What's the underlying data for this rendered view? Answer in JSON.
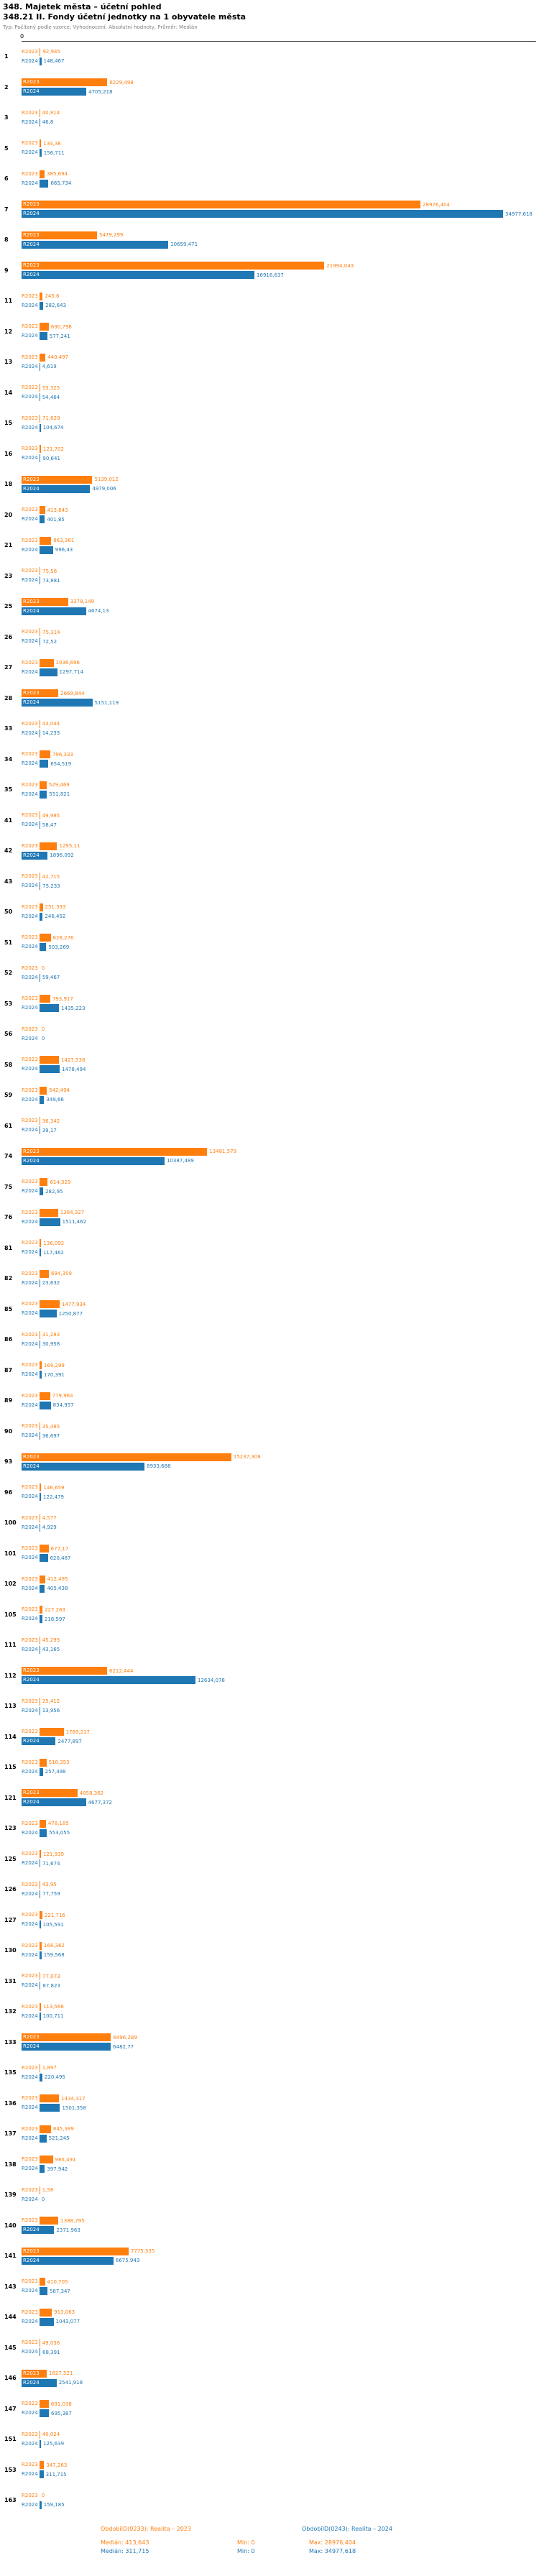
{
  "chart_data": {
    "type": "bar",
    "orientation": "horizontal",
    "title": "348. Majetek města – účetní pohled",
    "subtitle": "348.21 II. Fondy účetní jednotky na 1 obyvatele města",
    "note": "Typ: Počítaný podle vzorce; Vyhodnocení: Absolutní hodnoty, Průměr: Medián",
    "x_axis": {
      "origin_label": "0",
      "max": 34977.618
    },
    "series": [
      {
        "name": "R2023",
        "color": "#ff7f0e"
      },
      {
        "name": "R2024",
        "color": "#1f77b4"
      }
    ],
    "rows": [
      {
        "id": "1",
        "v2023": "92,945",
        "v2024": "148,467"
      },
      {
        "id": "2",
        "v2023": "6229,498",
        "v2024": "4705,218"
      },
      {
        "id": "3",
        "v2023": "40,814",
        "v2024": "46,8"
      },
      {
        "id": "5",
        "v2023": "134,38",
        "v2024": "156,711"
      },
      {
        "id": "6",
        "v2023": "385,694",
        "v2024": "665,734"
      },
      {
        "id": "7",
        "v2023": "28976,404",
        "v2024": "34977,618"
      },
      {
        "id": "8",
        "v2023": "5479,299",
        "v2024": "10659,471"
      },
      {
        "id": "9",
        "v2023": "21994,043",
        "v2024": "16916,637"
      },
      {
        "id": "11",
        "v2023": "245,6",
        "v2024": "282,643"
      },
      {
        "id": "12",
        "v2023": "690,798",
        "v2024": "577,241"
      },
      {
        "id": "13",
        "v2023": "440,497",
        "v2024": "4,619"
      },
      {
        "id": "14",
        "v2023": "53,325",
        "v2024": "54,464"
      },
      {
        "id": "15",
        "v2023": "71,629",
        "v2024": "104,674"
      },
      {
        "id": "16",
        "v2023": "121,702",
        "v2024": "90,641"
      },
      {
        "id": "18",
        "v2023": "5139,012",
        "v2024": "4979,006"
      },
      {
        "id": "20",
        "v2023": "413,643",
        "v2024": "401,85"
      },
      {
        "id": "21",
        "v2023": "863,361",
        "v2024": "996,43"
      },
      {
        "id": "23",
        "v2023": "75,56",
        "v2024": "73,881"
      },
      {
        "id": "25",
        "v2023": "3378,149",
        "v2024": "4674,13"
      },
      {
        "id": "26",
        "v2023": "75,314",
        "v2024": "72,52"
      },
      {
        "id": "27",
        "v2023": "1036,696",
        "v2024": "1297,714"
      },
      {
        "id": "28",
        "v2023": "2669,844",
        "v2024": "5151,119"
      },
      {
        "id": "33",
        "v2023": "43,044",
        "v2024": "14,233"
      },
      {
        "id": "34",
        "v2023": "796,333",
        "v2024": "654,519"
      },
      {
        "id": "35",
        "v2023": "529,469",
        "v2024": "551,821"
      },
      {
        "id": "41",
        "v2023": "49,985",
        "v2024": "58,47"
      },
      {
        "id": "42",
        "v2023": "1295,11",
        "v2024": "1896,092"
      },
      {
        "id": "43",
        "v2023": "42,715",
        "v2024": "75,233"
      },
      {
        "id": "50",
        "v2023": "251,393",
        "v2024": "246,452"
      },
      {
        "id": "51",
        "v2023": "828,276",
        "v2024": "503,269"
      },
      {
        "id": "52",
        "v2023": "0",
        "v2024": "59,467"
      },
      {
        "id": "53",
        "v2023": "793,917",
        "v2024": "1435,223"
      },
      {
        "id": "56",
        "v2023": "0",
        "v2024": "0"
      },
      {
        "id": "58",
        "v2023": "1427,538",
        "v2024": "1478,494"
      },
      {
        "id": "59",
        "v2023": "542,494",
        "v2024": "349,66"
      },
      {
        "id": "61",
        "v2023": "36,342",
        "v2024": "39,17"
      },
      {
        "id": "74",
        "v2023": "13481,579",
        "v2024": "10387,489"
      },
      {
        "id": "75",
        "v2023": "614,329",
        "v2024": "282,95"
      },
      {
        "id": "76",
        "v2023": "1364,327",
        "v2024": "1511,462"
      },
      {
        "id": "81",
        "v2023": "136,092",
        "v2024": "117,462"
      },
      {
        "id": "82",
        "v2023": "694,359",
        "v2024": "23,632"
      },
      {
        "id": "85",
        "v2023": "1477,934",
        "v2024": "1250,877"
      },
      {
        "id": "86",
        "v2023": "31,283",
        "v2024": "30,958"
      },
      {
        "id": "87",
        "v2023": "169,299",
        "v2024": "170,391"
      },
      {
        "id": "89",
        "v2023": "779,964",
        "v2024": "834,957"
      },
      {
        "id": "90",
        "v2023": "35,485",
        "v2024": "36,697"
      },
      {
        "id": "93",
        "v2023": "15237,308",
        "v2024": "8933,688"
      },
      {
        "id": "96",
        "v2023": "146,659",
        "v2024": "122,479"
      },
      {
        "id": "100",
        "v2023": "4,577",
        "v2024": "4,929"
      },
      {
        "id": "101",
        "v2023": "677,17",
        "v2024": "620,487"
      },
      {
        "id": "102",
        "v2023": "412,495",
        "v2024": "405,438"
      },
      {
        "id": "105",
        "v2023": "227,263",
        "v2024": "218,597"
      },
      {
        "id": "111",
        "v2023": "45,293",
        "v2024": "43,165"
      },
      {
        "id": "112",
        "v2023": "6212,444",
        "v2024": "12634,078"
      },
      {
        "id": "113",
        "v2023": "25,412",
        "v2024": "13,956"
      },
      {
        "id": "114",
        "v2023": "1769,217",
        "v2024": "2477,897"
      },
      {
        "id": "115",
        "v2023": "518,353",
        "v2024": "257,498"
      },
      {
        "id": "121",
        "v2023": "4058,362",
        "v2024": "4677,372"
      },
      {
        "id": "123",
        "v2023": "478,185",
        "v2024": "553,055"
      },
      {
        "id": "125",
        "v2023": "121,939",
        "v2024": "71,674"
      },
      {
        "id": "126",
        "v2023": "43,95",
        "v2024": "77,759"
      },
      {
        "id": "127",
        "v2023": "221,716",
        "v2024": "105,591"
      },
      {
        "id": "130",
        "v2023": "168,362",
        "v2024": "159,568"
      },
      {
        "id": "131",
        "v2023": "77,073",
        "v2024": "87,823"
      },
      {
        "id": "132",
        "v2023": "113,566",
        "v2024": "100,711"
      },
      {
        "id": "133",
        "v2023": "6496,289",
        "v2024": "6482,77"
      },
      {
        "id": "135",
        "v2023": "1,897",
        "v2024": "220,495"
      },
      {
        "id": "136",
        "v2023": "1434,317",
        "v2024": "1501,358"
      },
      {
        "id": "137",
        "v2023": "845,389",
        "v2024": "521,245"
      },
      {
        "id": "138",
        "v2023": "985,491",
        "v2024": "397,942"
      },
      {
        "id": "139",
        "v2023": "1,58",
        "v2024": "0"
      },
      {
        "id": "140",
        "v2023": "1388,795",
        "v2024": "2371,963"
      },
      {
        "id": "141",
        "v2023": "7775,535",
        "v2024": "6675,943"
      },
      {
        "id": "143",
        "v2023": "410,705",
        "v2024": "587,347"
      },
      {
        "id": "144",
        "v2023": "913,063",
        "v2024": "1043,077"
      },
      {
        "id": "145",
        "v2023": "49,036",
        "v2024": "68,391"
      },
      {
        "id": "146",
        "v2023": "1827,521",
        "v2024": "2541,918"
      },
      {
        "id": "147",
        "v2023": "691,038",
        "v2024": "695,387"
      },
      {
        "id": "151",
        "v2023": "40,024",
        "v2024": "125,639"
      },
      {
        "id": "153",
        "v2023": "347,263",
        "v2024": "311,715"
      },
      {
        "id": "163",
        "v2023": "0",
        "v2024": "159,185"
      }
    ],
    "legend": {
      "s2023": {
        "title": "ObdobíID(0233): Realita – 2023",
        "median": "Medián: 413,643",
        "min": "Min: 0",
        "max": "Max: 28976,404",
        "color": "#ff7f0e"
      },
      "s2024": {
        "title": "ObdobíID(0243): Realita – 2024",
        "median": "Medián: 311,715",
        "min": "Min: 0",
        "max": "Max: 34977,618",
        "color": "#1f77b4"
      }
    }
  }
}
